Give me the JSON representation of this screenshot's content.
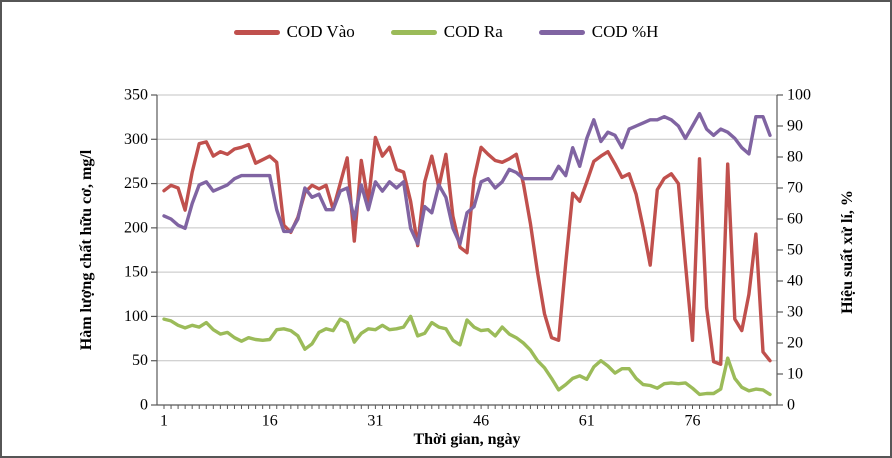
{
  "chart_data": {
    "type": "line",
    "title": "",
    "xlabel": "Thời gian, ngày",
    "ylabel_left": "Hàm lượng chất hữu cơ, mg/l",
    "ylabel_right": "Hiệu suất xử lí, %",
    "x_range": [
      1,
      87
    ],
    "x_ticks": [
      1,
      16,
      31,
      46,
      61,
      76
    ],
    "ylim_left": [
      0,
      350
    ],
    "y_left_ticks": [
      0,
      50,
      100,
      150,
      200,
      250,
      300,
      350
    ],
    "ylim_right": [
      0,
      100
    ],
    "y_right_ticks": [
      0,
      10,
      20,
      30,
      40,
      50,
      60,
      70,
      80,
      90,
      100
    ],
    "grid": "horizontal",
    "legend_position": "top-center",
    "colors": {
      "grid": "#c3c3c3",
      "axis": "#595959",
      "text": "#000000"
    },
    "series": [
      {
        "name": "COD Vào",
        "axis": "left",
        "color": "#c0504d",
        "values": [
          242,
          248,
          245,
          220,
          263,
          295,
          297,
          281,
          286,
          283,
          289,
          291,
          294,
          273,
          277,
          281,
          274,
          203,
          195,
          212,
          240,
          248,
          244,
          248,
          221,
          250,
          279,
          185,
          276,
          229,
          302,
          281,
          291,
          266,
          263,
          230,
          180,
          252,
          281,
          246,
          283,
          213,
          178,
          172,
          255,
          291,
          283,
          276,
          274,
          278,
          283,
          250,
          205,
          150,
          103,
          76,
          73,
          160,
          239,
          230,
          252,
          275,
          281,
          286,
          272,
          257,
          261,
          238,
          200,
          158,
          243,
          256,
          261,
          250,
          160,
          73,
          278,
          110,
          49,
          46,
          272,
          97,
          84,
          125,
          193,
          60,
          50
        ]
      },
      {
        "name": "COD Ra",
        "axis": "left",
        "color": "#9bbb59",
        "values": [
          97,
          95,
          90,
          87,
          90,
          88,
          93,
          85,
          80,
          82,
          76,
          72,
          76,
          74,
          73,
          74,
          85,
          86,
          84,
          78,
          63,
          69,
          82,
          86,
          84,
          97,
          93,
          71,
          81,
          86,
          85,
          90,
          85,
          86,
          88,
          100,
          78,
          81,
          93,
          88,
          86,
          73,
          68,
          96,
          88,
          84,
          85,
          78,
          88,
          80,
          76,
          70,
          62,
          50,
          42,
          30,
          17,
          23,
          30,
          33,
          29,
          43,
          50,
          44,
          36,
          41,
          41,
          30,
          23,
          22,
          19,
          24,
          25,
          24,
          25,
          19,
          12,
          13,
          13,
          18,
          53,
          30,
          20,
          16,
          18,
          17,
          12
        ]
      },
      {
        "name": "COD %H",
        "axis": "right",
        "color": "#8064a2",
        "values": [
          61,
          60,
          58,
          57,
          65,
          71,
          72,
          69,
          70,
          71,
          73,
          74,
          74,
          74,
          74,
          74,
          63,
          56,
          56,
          60,
          70,
          67,
          68,
          63,
          63,
          69,
          70,
          60,
          71,
          63,
          72,
          69,
          72,
          70,
          72,
          57,
          52,
          64,
          62,
          71,
          67,
          57,
          52,
          62,
          64,
          72,
          73,
          70,
          72,
          76,
          75,
          73,
          73,
          73,
          73,
          73,
          77,
          74,
          83,
          77,
          86,
          92,
          85,
          88,
          87,
          83,
          89,
          90,
          91,
          92,
          92,
          93,
          92,
          90,
          86,
          90,
          94,
          89,
          87,
          89,
          88,
          86,
          83,
          81,
          93,
          93,
          87
        ]
      }
    ]
  }
}
